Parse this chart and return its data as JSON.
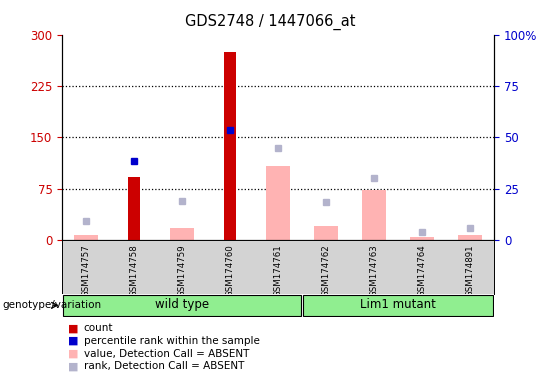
{
  "title": "GDS2748 / 1447066_at",
  "samples": [
    "GSM174757",
    "GSM174758",
    "GSM174759",
    "GSM174760",
    "GSM174761",
    "GSM174762",
    "GSM174763",
    "GSM174764",
    "GSM174891"
  ],
  "count_values": [
    null,
    92,
    null,
    275,
    null,
    null,
    null,
    null,
    null
  ],
  "percentile_rank_left": [
    null,
    115,
    null,
    160,
    null,
    null,
    null,
    null,
    null
  ],
  "absent_value": [
    8,
    null,
    18,
    null,
    108,
    20,
    73,
    4,
    7
  ],
  "absent_rank_left": [
    28,
    null,
    57,
    null,
    135,
    55,
    90,
    12,
    18
  ],
  "ylim_left": [
    0,
    300
  ],
  "ylim_right": [
    0,
    100
  ],
  "yticks_left": [
    0,
    75,
    150,
    225,
    300
  ],
  "yticks_right_labels": [
    "0",
    "25",
    "50",
    "75",
    "100%"
  ],
  "yticks_right_positions": [
    0,
    75,
    150,
    225,
    300
  ],
  "grid_lines": [
    75,
    150,
    225
  ],
  "wt_count": 5,
  "mut_count": 4,
  "group_label_wt": "wild type",
  "group_label_mut": "Lim1 mutant",
  "genotype_label": "genotype/variation",
  "color_count": "#cc0000",
  "color_rank": "#0000cc",
  "color_absent_value": "#ffb3b3",
  "color_absent_rank": "#b3b3cc",
  "bg_plot": "#ffffff",
  "bg_sample_strip": "#d3d3d3",
  "bg_group": "#90ee90",
  "legend_items": [
    {
      "label": "count",
      "color": "#cc0000"
    },
    {
      "label": "percentile rank within the sample",
      "color": "#0000cc"
    },
    {
      "label": "value, Detection Call = ABSENT",
      "color": "#ffb3b3"
    },
    {
      "label": "rank, Detection Call = ABSENT",
      "color": "#b3b3cc"
    }
  ]
}
